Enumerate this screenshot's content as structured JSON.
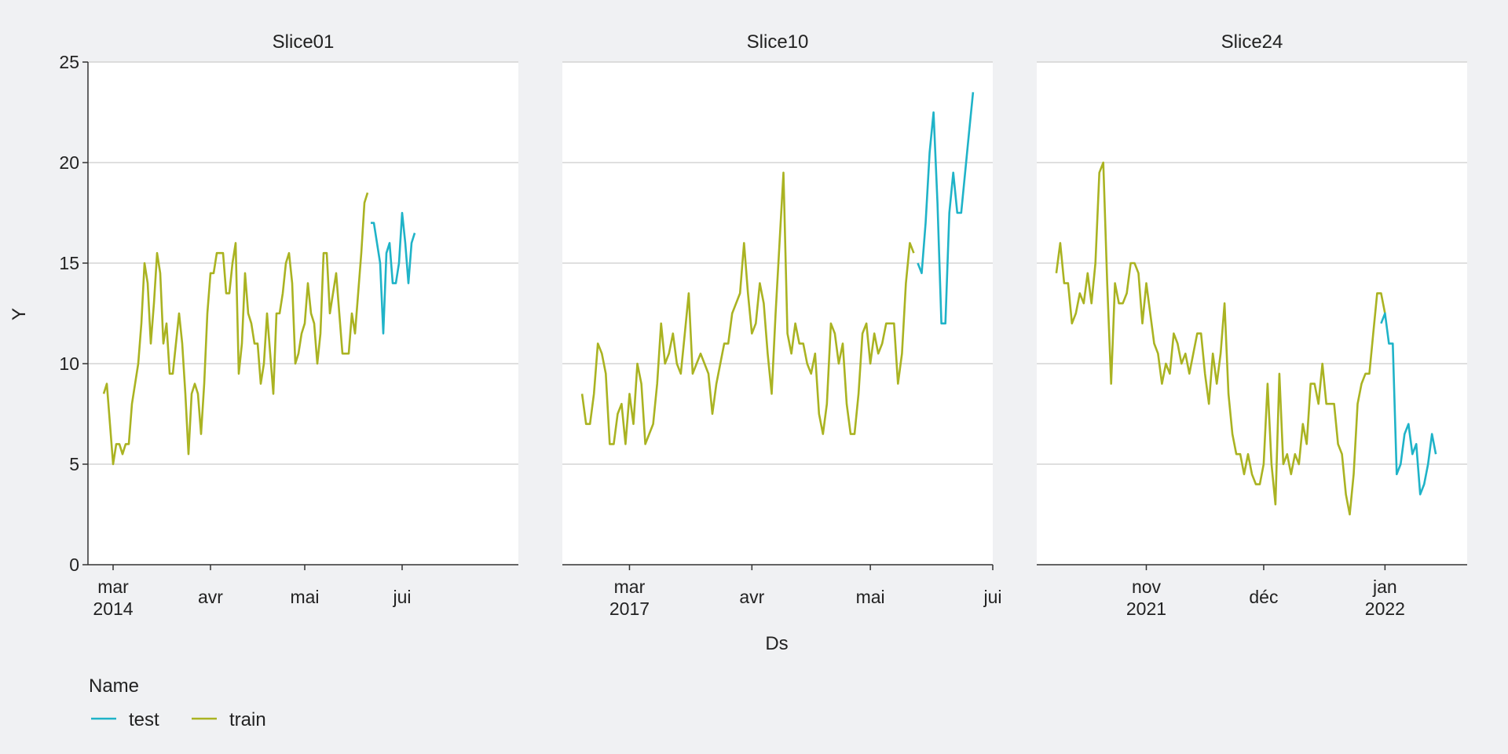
{
  "colors": {
    "test": "#1fb3c8",
    "train": "#aab322",
    "grid": "#cccccc",
    "panel": "#ffffff",
    "background": "#f0f1f3"
  },
  "chart_data": {
    "type": "line",
    "facets": [
      "Slice01",
      "Slice10",
      "Slice24"
    ],
    "xlabel": "Ds",
    "ylabel": "Y",
    "ylim": [
      0,
      25
    ],
    "yticks": [
      0,
      5,
      10,
      15,
      20,
      25
    ],
    "grid": true,
    "legend": {
      "title": "Name",
      "position": "bottom-left",
      "entries": [
        "test",
        "train"
      ]
    },
    "panels": [
      {
        "title": "Slice01",
        "xrange": [
          "2014-02-21",
          "2014-07-08"
        ],
        "ticks": [
          {
            "date": "2014-03-01",
            "label": [
              "mar",
              "2014"
            ]
          },
          {
            "date": "2014-04-01",
            "label": [
              "avr"
            ]
          },
          {
            "date": "2014-05-01",
            "label": [
              "mai"
            ]
          },
          {
            "date": "2014-06-01",
            "label": [
              "jui"
            ]
          }
        ],
        "series": [
          {
            "name": "train",
            "start": "2014-02-26",
            "values": [
              8.5,
              9,
              7,
              5,
              6,
              6,
              5.5,
              6,
              6,
              8,
              9,
              10,
              12,
              15,
              14,
              11,
              13,
              15.5,
              14.5,
              11,
              12,
              9.5,
              9.5,
              11,
              12.5,
              11,
              8.5,
              5.5,
              8.5,
              9,
              8.5,
              6.5,
              9,
              12.5,
              14.5,
              14.5,
              15.5,
              15.5,
              15.5,
              13.5,
              13.5,
              15,
              16,
              9.5,
              11,
              14.5,
              12.5,
              12,
              11,
              11,
              9,
              10,
              12.5,
              10.5,
              8.5,
              12.5,
              12.5,
              13.5,
              15,
              15.5,
              14,
              10,
              10.5,
              11.5,
              12,
              14,
              12.5,
              12,
              10,
              11.5,
              15.5,
              15.5,
              12.5,
              13.5,
              14.5,
              12.5,
              10.5,
              10.5,
              10.5,
              12.5,
              11.5,
              13.5,
              15.5,
              18,
              18.5
            ]
          },
          {
            "name": "test",
            "start": "2014-05-22",
            "values": [
              17,
              17,
              16,
              15,
              11.5,
              15.5,
              16,
              14,
              14,
              15,
              17.5,
              16,
              14,
              16,
              16.5
            ]
          }
        ]
      },
      {
        "title": "Slice10",
        "xrange": [
          "2017-02-12",
          "2017-06-01"
        ],
        "ticks": [
          {
            "date": "2017-03-01",
            "label": [
              "mar",
              "2017"
            ]
          },
          {
            "date": "2017-04-01",
            "label": [
              "avr"
            ]
          },
          {
            "date": "2017-05-01",
            "label": [
              "mai"
            ]
          },
          {
            "date": "2017-06-01",
            "label": [
              "jui"
            ]
          }
        ],
        "series": [
          {
            "name": "train",
            "start": "2017-02-17",
            "values": [
              8.5,
              7,
              7,
              8.5,
              11,
              10.5,
              9.5,
              6,
              6,
              7.5,
              8,
              6,
              8.5,
              7,
              10,
              9,
              6,
              6.5,
              7,
              9,
              12,
              10,
              10.5,
              11.5,
              10,
              9.5,
              11.5,
              13.5,
              9.5,
              10,
              10.5,
              10,
              9.5,
              7.5,
              9,
              10,
              11,
              11,
              12.5,
              13,
              13.5,
              16,
              13.5,
              11.5,
              12,
              14,
              13,
              10.5,
              8.5,
              12.5,
              16,
              19.5,
              11.5,
              10.5,
              12,
              11,
              11,
              10,
              9.5,
              10.5,
              7.5,
              6.5,
              8,
              12,
              11.5,
              10,
              11,
              8,
              6.5,
              6.5,
              8.5,
              11.5,
              12,
              10,
              11.5,
              10.5,
              11,
              12,
              12,
              12,
              9,
              10.5,
              14,
              16,
              15.5
            ]
          },
          {
            "name": "test",
            "start": "2017-05-13",
            "values": [
              15,
              14.5,
              17,
              20.5,
              22.5,
              18,
              12,
              12,
              17.5,
              19.5,
              17.5,
              17.5,
              19.5,
              21.5,
              23.5
            ]
          }
        ]
      },
      {
        "title": "Slice24",
        "xrange": [
          "2021-10-04",
          "2022-01-22"
        ],
        "ticks": [
          {
            "date": "2021-11-01",
            "label": [
              "nov",
              "2021"
            ]
          },
          {
            "date": "2021-12-01",
            "label": [
              "déc"
            ]
          },
          {
            "date": "2022-01-01",
            "label": [
              "jan",
              "2022"
            ]
          }
        ],
        "series": [
          {
            "name": "train",
            "start": "2021-10-09",
            "values": [
              14.5,
              16,
              14,
              14,
              12,
              12.5,
              13.5,
              13,
              14.5,
              13,
              15,
              19.5,
              20,
              14,
              9,
              14,
              13,
              13,
              13.5,
              15,
              15,
              14.5,
              12,
              14,
              12.5,
              11,
              10.5,
              9,
              10,
              9.5,
              11.5,
              11,
              10,
              10.5,
              9.5,
              10.5,
              11.5,
              11.5,
              9.5,
              8,
              10.5,
              9,
              10.5,
              13,
              8.5,
              6.5,
              5.5,
              5.5,
              4.5,
              5.5,
              4.5,
              4,
              4,
              5,
              9,
              5,
              3,
              9.5,
              5,
              5.5,
              4.5,
              5.5,
              5,
              7,
              6,
              9,
              9,
              8,
              10,
              8,
              8,
              8,
              6,
              5.5,
              3.5,
              2.5,
              4.5,
              8,
              9,
              9.5,
              9.5,
              11.5,
              13.5,
              13.5,
              12.5
            ]
          },
          {
            "name": "test",
            "start": "2021-12-31",
            "values": [
              12,
              12.5,
              11,
              11,
              4.5,
              5,
              6.5,
              7,
              5.5,
              6,
              3.5,
              4,
              5,
              6.5,
              5.5
            ]
          }
        ]
      }
    ]
  }
}
